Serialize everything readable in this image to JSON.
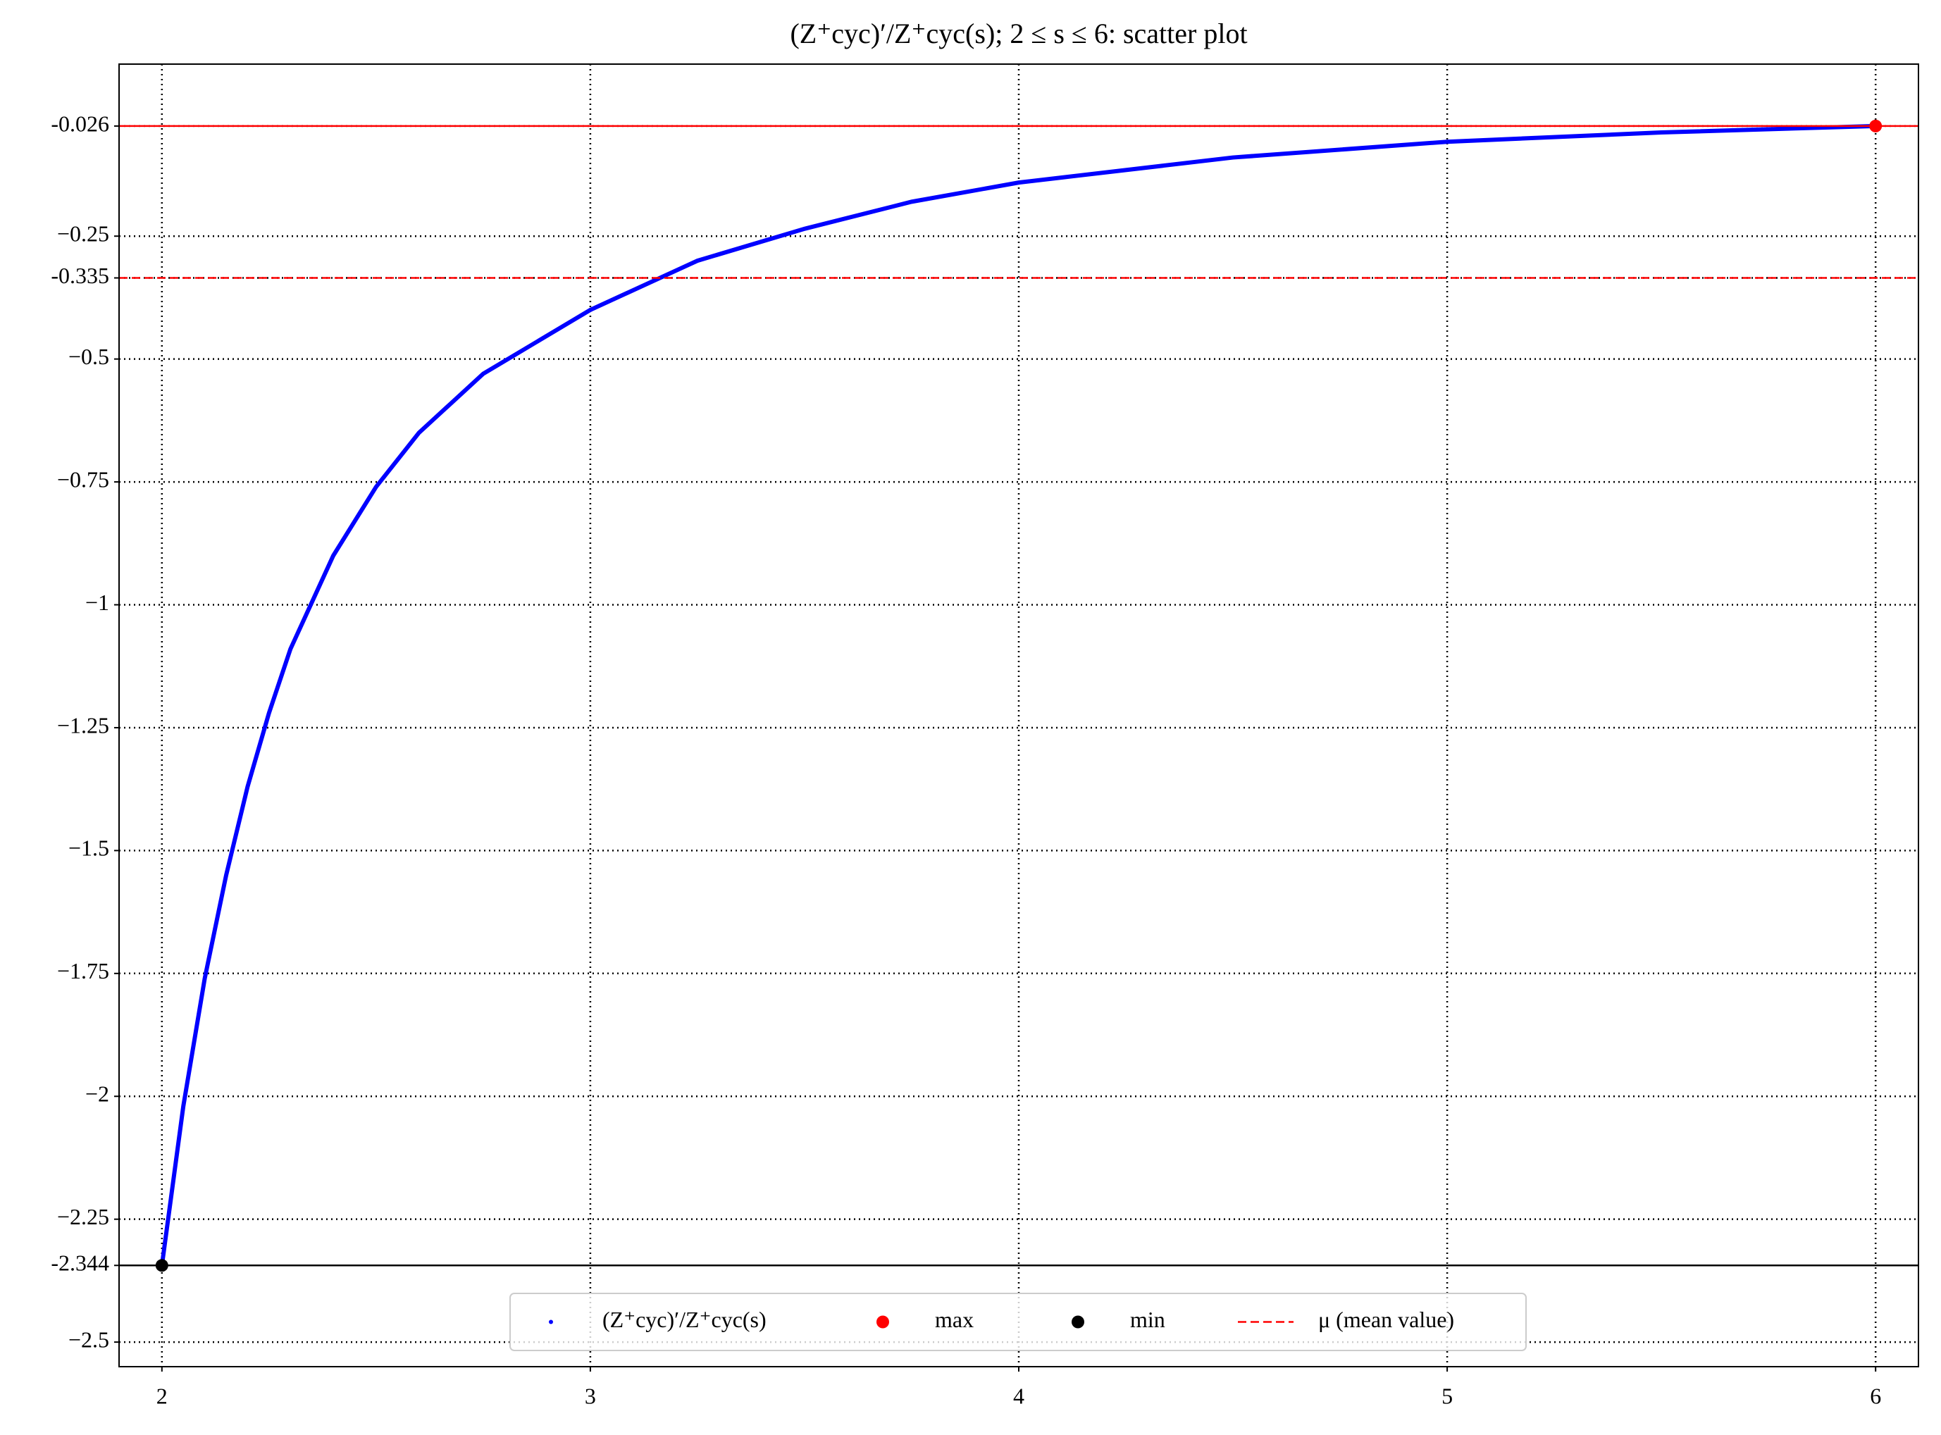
{
  "chart_data": {
    "type": "scatter",
    "title": "(Z⁺cyc)′/Z⁺cyc(s); 2 ≤ s ≤ 6: scatter plot",
    "x": [
      2,
      2.05,
      2.1,
      2.15,
      2.2,
      2.25,
      2.3,
      2.4,
      2.5,
      2.6,
      2.75,
      3,
      3.25,
      3.5,
      3.75,
      4,
      4.5,
      5,
      5.5,
      6
    ],
    "series": [
      {
        "name": "(Z⁺cyc)′/Z⁺cyc(s)",
        "color": "#0000ff",
        "values": [
          -2.344,
          -2.02,
          -1.76,
          -1.55,
          -1.37,
          -1.22,
          -1.09,
          -0.9,
          -0.76,
          -0.65,
          -0.53,
          -0.4,
          -0.3,
          -0.235,
          -0.18,
          -0.141,
          -0.09,
          -0.058,
          -0.039,
          -0.026
        ]
      }
    ],
    "max": {
      "name": "max",
      "color": "#ff0000",
      "x": 6,
      "y": -0.026
    },
    "min": {
      "name": "min",
      "color": "#000000",
      "x": 2,
      "y": -2.344
    },
    "mean": {
      "name": "μ (mean value)",
      "color": "#ff0000",
      "value": -0.335
    },
    "xlim": [
      1.9,
      6.1
    ],
    "ylim": [
      -2.55,
      0.1
    ],
    "xticks": [
      2,
      3,
      4,
      5,
      6
    ],
    "yticks": [
      -0.026,
      {
        "value": -0.25,
        "label": "−0.25"
      },
      -0.335,
      {
        "value": -0.5,
        "label": "−0.5"
      },
      {
        "value": -0.75,
        "label": "−0.75"
      },
      {
        "value": -1,
        "label": "−1"
      },
      {
        "value": -1.25,
        "label": "−1.25"
      },
      {
        "value": -1.5,
        "label": "−1.5"
      },
      {
        "value": -1.75,
        "label": "−1.75"
      },
      {
        "value": -2,
        "label": "−2"
      },
      {
        "value": -2.25,
        "label": "−2.25"
      },
      -2.344,
      {
        "value": -2.5,
        "label": "−2.5"
      }
    ],
    "grid": true,
    "legend": "lower center"
  }
}
